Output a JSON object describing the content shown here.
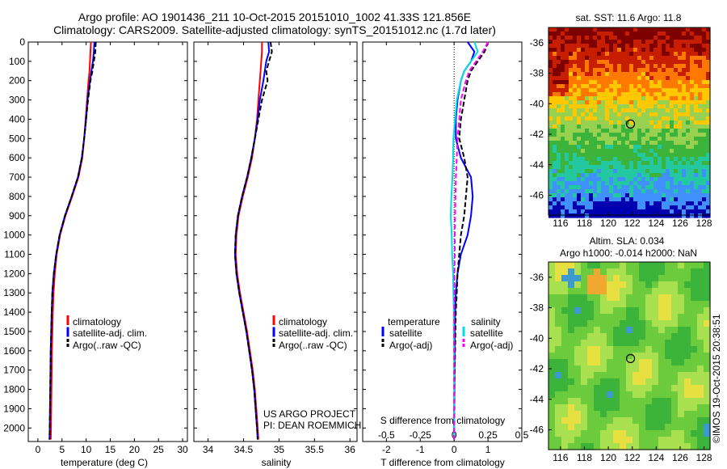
{
  "titles": {
    "line1": "Argo profile: AO 1901436_211 10-Oct-2015 20151010_1002 41.33S 121.856E",
    "line2": "Climatology: CARS2009. Satellite-adjusted climatology: synTS_20151012.nc (1.7d later)"
  },
  "chart_data": [
    {
      "type": "line",
      "name": "temperature",
      "xlabel": "temperature (deg C)",
      "ylabel": "",
      "xlim": [
        -2,
        31
      ],
      "ylim": [
        2070,
        0
      ],
      "xticks": [
        "0",
        "5",
        "10",
        "15",
        "20",
        "25",
        "30"
      ],
      "xtick_values": [
        0,
        5,
        10,
        15,
        20,
        25,
        30
      ],
      "yticks": [
        "0",
        "100",
        "200",
        "300",
        "400",
        "500",
        "600",
        "700",
        "800",
        "900",
        "1000",
        "1100",
        "1200",
        "1300",
        "1400",
        "1500",
        "1600",
        "1700",
        "1800",
        "1900",
        "2000"
      ],
      "ytick_values": [
        0,
        100,
        200,
        300,
        400,
        500,
        600,
        700,
        800,
        900,
        1000,
        1100,
        1200,
        1300,
        1400,
        1500,
        1600,
        1700,
        1800,
        1900,
        2000
      ],
      "depth": [
        0,
        50,
        100,
        150,
        200,
        300,
        400,
        500,
        600,
        700,
        800,
        900,
        1000,
        1100,
        1200,
        1300,
        1400,
        1500,
        1600,
        1700,
        1800,
        1900,
        2000,
        2060
      ],
      "series": [
        {
          "name": "climatology",
          "color": "#ff0000",
          "dash": "",
          "values": [
            11.0,
            10.9,
            10.8,
            10.7,
            10.5,
            10.2,
            9.9,
            9.6,
            9.2,
            8.4,
            7.1,
            5.7,
            4.6,
            3.9,
            3.5,
            3.25,
            3.1,
            3.0,
            2.9,
            2.85,
            2.8,
            2.75,
            2.7,
            2.65
          ]
        },
        {
          "name": "satellite-adj. clim.",
          "color": "#0000ff",
          "dash": "",
          "values": [
            11.7,
            11.6,
            11.4,
            11.1,
            10.8,
            10.3,
            10.0,
            9.6,
            9.1,
            8.3,
            7.0,
            5.6,
            4.5,
            3.8,
            3.3,
            3.0,
            2.85,
            2.75,
            2.65,
            2.6,
            2.55,
            2.5,
            2.45,
            2.4
          ]
        },
        {
          "name": "Argo(..raw -QC)",
          "color": "#000000",
          "dash": "6,3",
          "values": [
            12.0,
            11.9,
            11.6,
            11.3,
            10.9,
            10.4,
            10.0,
            9.6,
            9.1,
            8.3,
            7.0,
            5.6,
            4.5,
            3.8,
            3.3,
            3.0,
            2.85,
            2.75,
            2.65,
            2.6,
            2.55,
            2.5,
            2.45,
            2.4
          ]
        }
      ],
      "legend": [
        "climatology",
        "satellite-adj. clim.",
        "Argo(..raw -QC)"
      ],
      "legend_position": "lower-right"
    },
    {
      "type": "line",
      "name": "salinity",
      "xlabel": "salinity",
      "xlim": [
        33.8,
        36.1
      ],
      "ylim": [
        2070,
        0
      ],
      "xticks": [
        "34",
        "34.5",
        "35",
        "35.5",
        "36"
      ],
      "xtick_values": [
        34,
        34.5,
        35,
        35.5,
        36
      ],
      "depth": [
        0,
        50,
        100,
        150,
        200,
        300,
        400,
        500,
        600,
        700,
        800,
        900,
        1000,
        1100,
        1200,
        1300,
        1400,
        1500,
        1600,
        1700,
        1800,
        1900,
        2000,
        2060
      ],
      "series": [
        {
          "name": "climatology",
          "color": "#ff0000",
          "dash": "",
          "values": [
            34.76,
            34.76,
            34.75,
            34.74,
            34.73,
            34.71,
            34.69,
            34.66,
            34.62,
            34.56,
            34.49,
            34.43,
            34.4,
            34.39,
            34.41,
            34.45,
            34.5,
            34.55,
            34.59,
            34.63,
            34.66,
            34.68,
            34.7,
            34.71
          ]
        },
        {
          "name": "satellite-adj. clim.",
          "color": "#0000ff",
          "dash": "",
          "values": [
            34.85,
            34.86,
            34.82,
            34.8,
            34.78,
            34.73,
            34.7,
            34.66,
            34.61,
            34.55,
            34.48,
            34.42,
            34.39,
            34.38,
            34.4,
            34.44,
            34.49,
            34.54,
            34.58,
            34.62,
            34.65,
            34.67,
            34.69,
            34.7
          ]
        },
        {
          "name": "Argo(..raw -QC)",
          "color": "#000000",
          "dash": "6,3",
          "values": [
            34.88,
            34.9,
            34.86,
            34.82,
            34.84,
            34.76,
            34.71,
            34.66,
            34.61,
            34.55,
            34.48,
            34.42,
            34.39,
            34.38,
            34.4,
            34.44,
            34.49,
            34.54,
            34.58,
            34.62,
            34.65,
            34.67,
            34.69,
            34.7
          ]
        }
      ],
      "legend": [
        "climatology",
        "satellite-adj. clim.",
        "Argo(..raw -QC)"
      ],
      "legend_position": "lower-right",
      "annotations": [
        "US ARGO PROJECT",
        "PI: DEAN ROEMMICH"
      ]
    },
    {
      "type": "line",
      "name": "difference",
      "xlabel": "T difference from climatology",
      "xlabel_top": "S difference from climatology",
      "xlim": [
        -2.7,
        2.0
      ],
      "ylim": [
        2070,
        0
      ],
      "xticks": [
        "-2",
        "-1",
        "0",
        "1"
      ],
      "xtick_values": [
        -2,
        -1,
        0,
        1
      ],
      "sticks": [
        "-0.5",
        "-0.25",
        "0",
        "0.25",
        "0.5"
      ],
      "stick_values": [
        -0.5,
        -0.25,
        0,
        0.25,
        0.5
      ],
      "depth": [
        0,
        50,
        100,
        150,
        200,
        300,
        400,
        500,
        600,
        700,
        800,
        900,
        1000,
        1100,
        1200,
        1300,
        1400,
        1500,
        1600,
        1700,
        1800,
        1900,
        2000,
        2060
      ],
      "series": [
        {
          "name": "temperature satellite",
          "color": "#0000ff",
          "dash": "",
          "values": [
            0.4,
            0.6,
            0.5,
            0.3,
            0.2,
            0.1,
            0.05,
            0.05,
            0.2,
            0.5,
            0.55,
            0.5,
            0.4,
            0.2,
            0.1,
            0.05,
            0.03,
            0.02,
            0.02,
            0.01,
            0.01,
            0.0,
            0.0,
            0.0
          ]
        },
        {
          "name": "temperature Argo(-adj)",
          "color": "#000000",
          "dash": "6,3",
          "values": [
            1.0,
            0.9,
            0.7,
            0.5,
            0.4,
            0.3,
            0.2,
            0.15,
            0.3,
            0.4,
            0.35,
            0.3,
            0.2,
            0.15,
            0.1,
            0.08,
            0.05,
            0.04,
            0.03,
            0.02,
            0.01,
            0.01,
            0.0,
            0.0
          ]
        },
        {
          "name": "salinity satellite",
          "color": "#00dddd",
          "dash": "",
          "values": [
            0.6,
            0.7,
            0.5,
            0.3,
            0.2,
            0.08,
            0.03,
            -0.02,
            -0.03,
            -0.05,
            -0.08,
            -0.1,
            -0.07,
            -0.06,
            -0.03,
            -0.02,
            -0.01,
            -0.01,
            0.0,
            0.0,
            0.0,
            0.0,
            0.0,
            0.0
          ]
        },
        {
          "name": "salinity Argo(-adj)",
          "color": "#ff00ff",
          "dash": "6,3",
          "values": [
            1.0,
            0.85,
            0.65,
            0.45,
            0.35,
            0.2,
            0.15,
            0.1,
            0.08,
            0.05,
            0.04,
            0.03,
            0.02,
            0.02,
            0.01,
            0.01,
            0.0,
            0.0,
            0.0,
            0.0,
            0.0,
            0.0,
            0.0,
            0.0
          ]
        }
      ],
      "legend_groups": [
        {
          "title": "temperature",
          "items": [
            "satellite",
            "Argo(-adj)"
          ]
        },
        {
          "title": "salinity",
          "items": [
            "satellite",
            "Argo(-adj)"
          ]
        }
      ],
      "legend_position": "lower-center"
    },
    {
      "type": "heatmap",
      "name": "sst_map",
      "title": "sat. SST: 11.6  Argo: 11.8",
      "xlim": [
        115,
        128.5
      ],
      "ylim": [
        -47.3,
        -35
      ],
      "xticks": [
        "116",
        "118",
        "120",
        "122",
        "124",
        "126",
        "128"
      ],
      "xtick_values": [
        116,
        118,
        120,
        122,
        124,
        126,
        128
      ],
      "yticks": [
        "-36",
        "-38",
        "-40",
        "-42",
        "-44",
        "-46"
      ],
      "ytick_values": [
        -36,
        -38,
        -40,
        -42,
        -44,
        -46
      ],
      "marker": [
        121.856,
        -41.33
      ],
      "colormap": [
        "#7f0000",
        "#c81e00",
        "#ff7800",
        "#ffc800",
        "#98d050",
        "#3cb43c",
        "#24c8a0",
        "#4090ff",
        "#0000b0"
      ]
    },
    {
      "type": "heatmap",
      "name": "sla_map",
      "title_line1": "Altim. SLA: 0.034",
      "title_line2": "Argo h1000: -0.014 h2000: NaN",
      "xlim": [
        115,
        128.5
      ],
      "ylim": [
        -47.3,
        -35
      ],
      "xticks": [
        "116",
        "118",
        "120",
        "122",
        "124",
        "126",
        "128"
      ],
      "xtick_values": [
        116,
        118,
        120,
        122,
        124,
        126,
        128
      ],
      "yticks": [
        "-36",
        "-38",
        "-40",
        "-42",
        "-44",
        "-46"
      ],
      "ytick_values": [
        -36,
        -38,
        -40,
        -42,
        -44,
        -46
      ],
      "marker": [
        121.856,
        -41.33
      ],
      "colormap": [
        "#3c9ad0",
        "#3cb43c",
        "#6ccb3c",
        "#a8e050",
        "#e8e040",
        "#f0a830"
      ]
    }
  ],
  "watermark": "©IMOS 19-Oct-2015 20:38:51"
}
